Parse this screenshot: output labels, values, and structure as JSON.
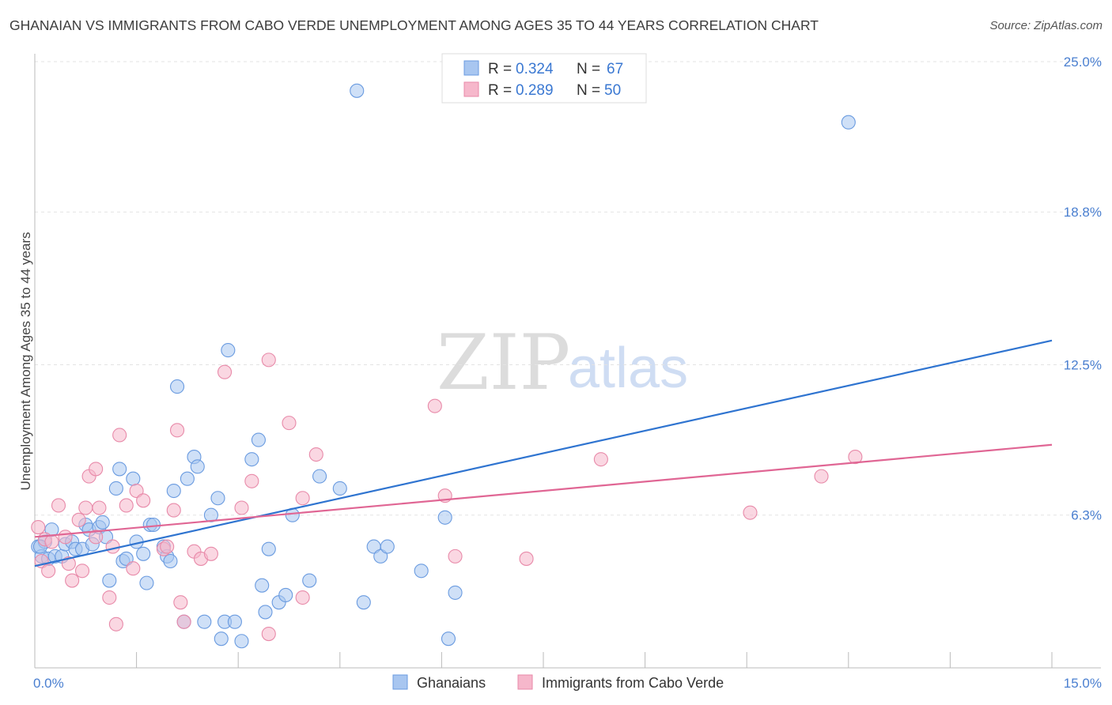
{
  "title": "GHANAIAN VS IMMIGRANTS FROM CABO VERDE UNEMPLOYMENT AMONG AGES 35 TO 44 YEARS CORRELATION CHART",
  "source": "Source: ZipAtlas.com",
  "watermark": {
    "zip": "ZIP",
    "atlas": "atlas"
  },
  "colors": {
    "blue_fill": "#a8c6f0",
    "blue_stroke": "#6a9be0",
    "blue_line": "#2f74d0",
    "pink_fill": "#f6b7cb",
    "pink_stroke": "#e88aa9",
    "pink_line": "#e06694",
    "tick_text": "#4a7fd0",
    "grid": "#e3e3e3"
  },
  "legend": {
    "items": [
      {
        "r_label": "R = ",
        "r_value": "0.324",
        "n_label": "N = ",
        "n_value": "67"
      },
      {
        "r_label": "R = ",
        "r_value": "0.289",
        "n_label": "N = ",
        "n_value": "50"
      }
    ]
  },
  "chart_data": {
    "type": "scatter",
    "title": "GHANAIAN VS IMMIGRANTS FROM CABO VERDE UNEMPLOYMENT AMONG AGES 35 TO 44 YEARS CORRELATION CHART",
    "xlabel": "",
    "ylabel": "Unemployment Among Ages 35 to 44 years",
    "xlim": [
      0,
      15
    ],
    "ylim": [
      0,
      25
    ],
    "x_tick_labels": [
      "0.0%",
      "15.0%"
    ],
    "y_ticks": [
      6.3,
      12.5,
      18.8,
      25.0
    ],
    "y_tick_labels": [
      "6.3%",
      "12.5%",
      "18.8%",
      "25.0%"
    ],
    "grid": true,
    "legend_position": "top-center",
    "series": [
      {
        "name": "Ghanaians",
        "color": "#a8c6f0",
        "r": 0.324,
        "n": 67,
        "trend": {
          "x": [
            0,
            15
          ],
          "y": [
            4.2,
            13.5
          ]
        },
        "points": [
          [
            0.05,
            5.0
          ],
          [
            0.1,
            4.6
          ],
          [
            0.15,
            5.2
          ],
          [
            0.2,
            4.5
          ],
          [
            0.25,
            5.7
          ],
          [
            0.3,
            4.6
          ],
          [
            0.4,
            4.6
          ],
          [
            0.45,
            5.1
          ],
          [
            0.55,
            5.2
          ],
          [
            0.6,
            4.9
          ],
          [
            0.7,
            4.9
          ],
          [
            0.75,
            5.9
          ],
          [
            0.8,
            5.7
          ],
          [
            0.85,
            5.1
          ],
          [
            0.95,
            5.8
          ],
          [
            1.0,
            6.0
          ],
          [
            1.05,
            5.4
          ],
          [
            1.1,
            3.6
          ],
          [
            1.2,
            7.4
          ],
          [
            1.25,
            8.2
          ],
          [
            1.3,
            4.4
          ],
          [
            1.35,
            4.5
          ],
          [
            1.45,
            7.8
          ],
          [
            1.5,
            5.2
          ],
          [
            1.6,
            4.7
          ],
          [
            1.65,
            3.5
          ],
          [
            1.7,
            5.9
          ],
          [
            1.75,
            5.9
          ],
          [
            1.9,
            5.0
          ],
          [
            1.95,
            4.6
          ],
          [
            2.0,
            4.4
          ],
          [
            2.05,
            7.3
          ],
          [
            2.1,
            11.6
          ],
          [
            2.2,
            1.9
          ],
          [
            2.25,
            7.8
          ],
          [
            2.35,
            8.7
          ],
          [
            2.4,
            8.3
          ],
          [
            2.5,
            1.9
          ],
          [
            2.6,
            6.3
          ],
          [
            2.7,
            7.0
          ],
          [
            2.75,
            1.2
          ],
          [
            2.8,
            1.9
          ],
          [
            2.85,
            13.1
          ],
          [
            2.95,
            1.9
          ],
          [
            3.05,
            1.1
          ],
          [
            3.2,
            8.6
          ],
          [
            3.3,
            9.4
          ],
          [
            3.35,
            3.4
          ],
          [
            3.4,
            2.3
          ],
          [
            3.45,
            4.9
          ],
          [
            3.6,
            2.7
          ],
          [
            3.7,
            3.0
          ],
          [
            3.8,
            6.3
          ],
          [
            4.05,
            3.6
          ],
          [
            4.2,
            7.9
          ],
          [
            4.5,
            7.4
          ],
          [
            4.75,
            23.8
          ],
          [
            4.85,
            2.7
          ],
          [
            5.0,
            5.0
          ],
          [
            5.1,
            4.6
          ],
          [
            5.2,
            5.0
          ],
          [
            5.7,
            4.0
          ],
          [
            6.05,
            6.2
          ],
          [
            6.1,
            1.2
          ],
          [
            6.2,
            3.1
          ],
          [
            12.0,
            22.5
          ],
          [
            0.08,
            5.0
          ]
        ]
      },
      {
        "name": "Immigrants from Cabo Verde",
        "color": "#f6b7cb",
        "r": 0.289,
        "n": 50,
        "trend": {
          "x": [
            0,
            15
          ],
          "y": [
            5.4,
            9.2
          ]
        },
        "points": [
          [
            0.05,
            5.8
          ],
          [
            0.1,
            4.4
          ],
          [
            0.15,
            5.3
          ],
          [
            0.2,
            4.0
          ],
          [
            0.25,
            5.2
          ],
          [
            0.35,
            6.7
          ],
          [
            0.45,
            5.4
          ],
          [
            0.5,
            4.3
          ],
          [
            0.55,
            3.6
          ],
          [
            0.65,
            6.1
          ],
          [
            0.7,
            4.0
          ],
          [
            0.75,
            6.6
          ],
          [
            0.8,
            7.9
          ],
          [
            0.9,
            5.4
          ],
          [
            0.9,
            8.2
          ],
          [
            0.95,
            6.6
          ],
          [
            1.1,
            2.9
          ],
          [
            1.15,
            5.0
          ],
          [
            1.2,
            1.8
          ],
          [
            1.25,
            9.6
          ],
          [
            1.35,
            6.7
          ],
          [
            1.45,
            4.1
          ],
          [
            1.5,
            7.3
          ],
          [
            1.6,
            6.9
          ],
          [
            1.9,
            4.9
          ],
          [
            1.95,
            5.0
          ],
          [
            2.05,
            6.5
          ],
          [
            2.1,
            9.8
          ],
          [
            2.15,
            2.7
          ],
          [
            2.2,
            1.9
          ],
          [
            2.35,
            4.8
          ],
          [
            2.45,
            4.5
          ],
          [
            2.6,
            4.7
          ],
          [
            2.8,
            12.2
          ],
          [
            3.05,
            6.6
          ],
          [
            3.2,
            7.7
          ],
          [
            3.45,
            12.7
          ],
          [
            3.45,
            1.4
          ],
          [
            3.75,
            10.1
          ],
          [
            3.95,
            2.9
          ],
          [
            3.95,
            7.0
          ],
          [
            4.15,
            8.8
          ],
          [
            5.9,
            10.8
          ],
          [
            6.05,
            7.1
          ],
          [
            6.2,
            4.6
          ],
          [
            7.25,
            4.5
          ],
          [
            8.35,
            8.6
          ],
          [
            10.55,
            6.4
          ],
          [
            11.6,
            7.9
          ],
          [
            12.1,
            8.7
          ]
        ]
      }
    ]
  }
}
